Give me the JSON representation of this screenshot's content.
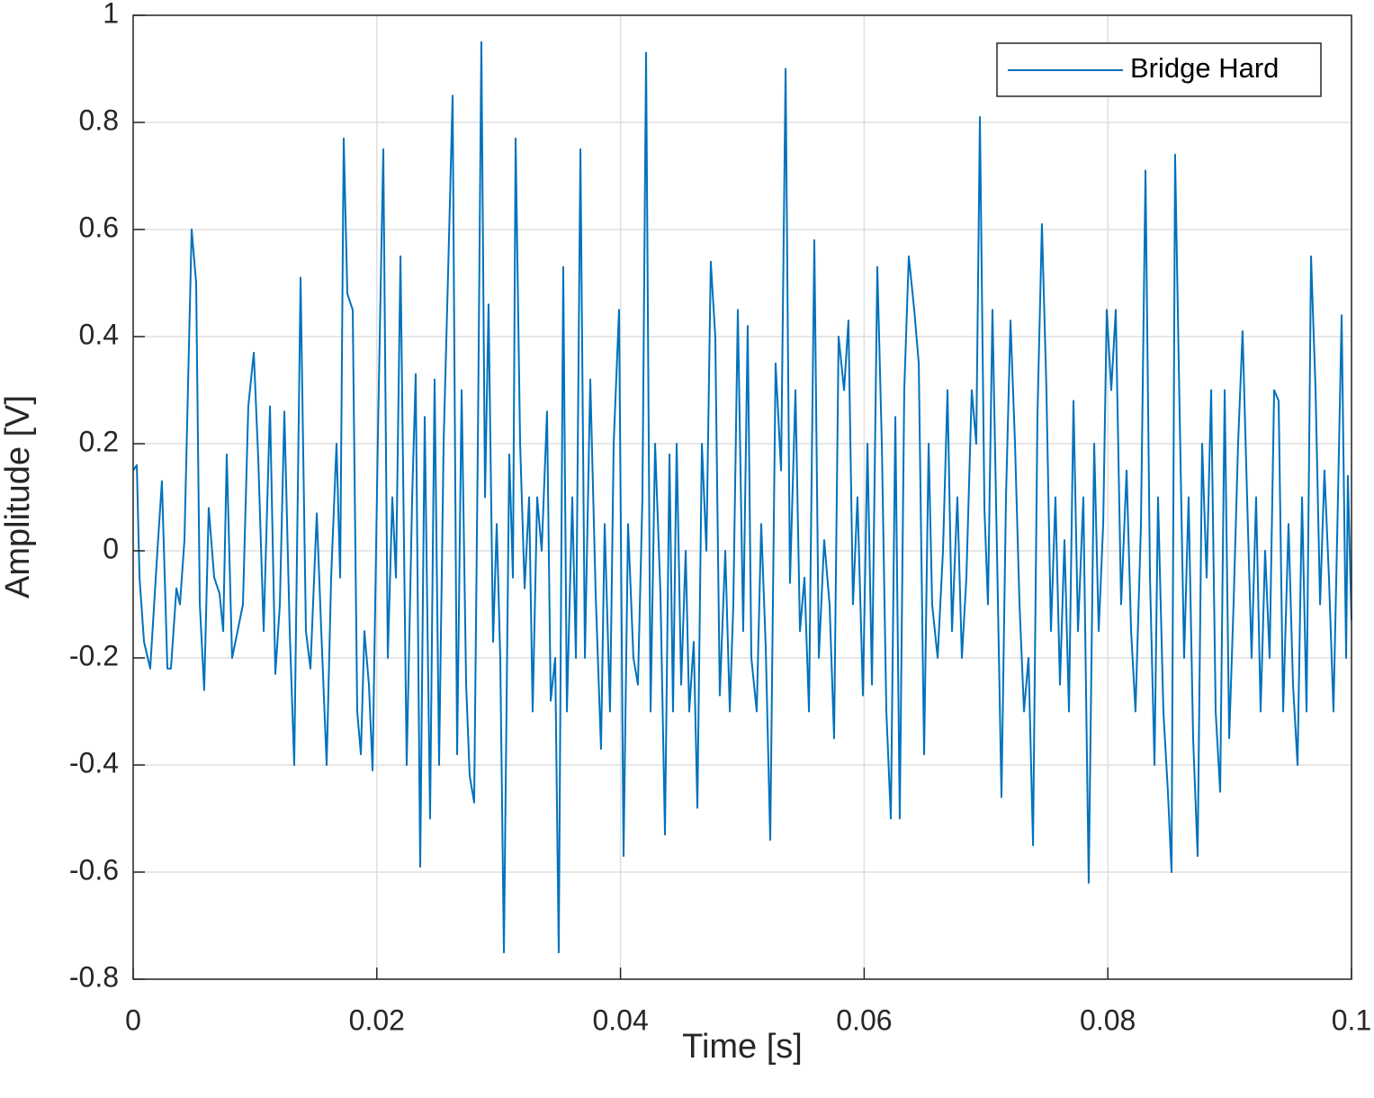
{
  "chart_data": {
    "type": "line",
    "xlabel": "Time [s]",
    "ylabel": "Amplitude [V]",
    "xlim": [
      0,
      0.1
    ],
    "ylim": [
      -0.8,
      1
    ],
    "xticks": [
      0,
      0.02,
      0.04,
      0.06,
      0.08,
      0.1
    ],
    "yticks": [
      -0.8,
      -0.6,
      -0.4,
      -0.2,
      0,
      0.2,
      0.4,
      0.6,
      0.8,
      1
    ],
    "grid": true,
    "legend": "upper right",
    "x": [
      0,
      0.0003,
      0.00052,
      0.00089,
      0.0014,
      0.00199,
      0.00236,
      0.00281,
      0.0031,
      0.00355,
      0.00384,
      0.00421,
      0.0048,
      0.00517,
      0.00547,
      0.00583,
      0.0062,
      0.00665,
      0.00709,
      0.00739,
      0.00768,
      0.00812,
      0.00857,
      0.00901,
      0.00945,
      0.0099,
      0.01027,
      0.01071,
      0.01123,
      0.01167,
      0.01204,
      0.01241,
      0.01285,
      0.01322,
      0.01374,
      0.01418,
      0.01455,
      0.01507,
      0.01544,
      0.01588,
      0.01625,
      0.01669,
      0.01699,
      0.01728,
      0.01758,
      0.01802,
      0.01839,
      0.01869,
      0.01898,
      0.01935,
      0.01965,
      0.02009,
      0.02053,
      0.0209,
      0.02127,
      0.02157,
      0.02194,
      0.02245,
      0.0229,
      0.02319,
      0.02356,
      0.02393,
      0.02437,
      0.02474,
      0.02511,
      0.02548,
      0.02585,
      0.02622,
      0.02659,
      0.02696,
      0.02733,
      0.02762,
      0.02799,
      0.02829,
      0.02858,
      0.02888,
      0.02917,
      0.02954,
      0.02984,
      0.03013,
      0.03043,
      0.03087,
      0.03117,
      0.03139,
      0.03176,
      0.03213,
      0.0325,
      0.03279,
      0.03316,
      0.03353,
      0.03397,
      0.03427,
      0.03464,
      0.03493,
      0.0353,
      0.0356,
      0.03604,
      0.03634,
      0.03671,
      0.03708,
      0.03752,
      0.03796,
      0.0384,
      0.0387,
      0.03914,
      0.03944,
      0.03988,
      0.04025,
      0.04062,
      0.04106,
      0.04143,
      0.0418,
      0.0421,
      0.04247,
      0.04284,
      0.04328,
      0.04365,
      0.04402,
      0.04431,
      0.04461,
      0.04498,
      0.04535,
      0.04564,
      0.04601,
      0.04631,
      0.04668,
      0.04705,
      0.04741,
      0.04778,
      0.04815,
      0.0486,
      0.04897,
      0.04926,
      0.04963,
      0.05007,
      0.05044,
      0.05074,
      0.05118,
      0.05155,
      0.05192,
      0.05229,
      0.05273,
      0.05318,
      0.05355,
      0.05391,
      0.05436,
      0.05473,
      0.0551,
      0.05547,
      0.05591,
      0.05628,
      0.05672,
      0.05716,
      0.05753,
      0.0579,
      0.05835,
      0.05871,
      0.05908,
      0.05945,
      0.0599,
      0.06027,
      0.06064,
      0.06108,
      0.06145,
      0.06182,
      0.06219,
      0.06256,
      0.06292,
      0.06329,
      0.06366,
      0.06411,
      0.06448,
      0.06492,
      0.06529,
      0.06558,
      0.06603,
      0.06647,
      0.06684,
      0.06721,
      0.06765,
      0.06802,
      0.06839,
      0.06883,
      0.0692,
      0.0695,
      0.06987,
      0.07016,
      0.07053,
      0.0709,
      0.07127,
      0.07164,
      0.07201,
      0.07238,
      0.07275,
      0.07312,
      0.07349,
      0.07386,
      0.07422,
      0.07459,
      0.07496,
      0.07533,
      0.0757,
      0.07607,
      0.07644,
      0.07681,
      0.07718,
      0.07755,
      0.07799,
      0.07843,
      0.07888,
      0.07925,
      0.07962,
      0.07991,
      0.08028,
      0.08065,
      0.08109,
      0.08154,
      0.08191,
      0.08227,
      0.08272,
      0.08309,
      0.08346,
      0.08383,
      0.08412,
      0.08456,
      0.08493,
      0.08523,
      0.08552,
      0.08582,
      0.08626,
      0.08663,
      0.087,
      0.08737,
      0.08774,
      0.08811,
      0.08848,
      0.08885,
      0.08922,
      0.08959,
      0.08996,
      0.09032,
      0.09069,
      0.09106,
      0.09143,
      0.0918,
      0.09217,
      0.09254,
      0.09291,
      0.09328,
      0.09365,
      0.09402,
      0.09439,
      0.09483,
      0.0952,
      0.09557,
      0.09594,
      0.09631,
      0.09668,
      0.09705,
      0.09742,
      0.09778,
      0.09815,
      0.09852,
      0.09889,
      0.09919,
      0.09956,
      0.0997,
      0.1
    ],
    "series": [
      {
        "name": "Bridge Hard",
        "color": "#0072BD",
        "values": [
          0.15,
          0.16,
          -0.05,
          -0.17,
          -0.22,
          0.0,
          0.13,
          -0.22,
          -0.22,
          -0.07,
          -0.1,
          0.02,
          0.6,
          0.5,
          -0.1,
          -0.26,
          0.08,
          -0.05,
          -0.08,
          -0.15,
          0.18,
          -0.2,
          -0.15,
          -0.1,
          0.27,
          0.37,
          0.17,
          -0.15,
          0.27,
          -0.23,
          -0.1,
          0.26,
          -0.15,
          -0.4,
          0.51,
          -0.15,
          -0.22,
          0.07,
          -0.15,
          -0.4,
          -0.05,
          0.2,
          -0.05,
          0.77,
          0.48,
          0.45,
          -0.3,
          -0.38,
          -0.15,
          -0.25,
          -0.41,
          0.22,
          0.75,
          -0.2,
          0.1,
          -0.05,
          0.55,
          -0.4,
          0.1,
          0.33,
          -0.59,
          0.25,
          -0.5,
          0.32,
          -0.4,
          0.2,
          0.52,
          0.85,
          -0.38,
          0.3,
          -0.25,
          -0.42,
          -0.47,
          0.2,
          0.95,
          0.1,
          0.46,
          -0.17,
          0.05,
          -0.2,
          -0.75,
          0.18,
          -0.05,
          0.77,
          0.2,
          -0.07,
          0.1,
          -0.3,
          0.1,
          0.0,
          0.26,
          -0.28,
          -0.2,
          -0.75,
          0.53,
          -0.3,
          0.1,
          -0.2,
          0.75,
          -0.2,
          0.32,
          -0.08,
          -0.37,
          0.05,
          -0.3,
          0.2,
          0.45,
          -0.57,
          0.05,
          -0.2,
          -0.25,
          0.1,
          0.93,
          -0.3,
          0.2,
          -0.08,
          -0.53,
          0.18,
          -0.3,
          0.2,
          -0.25,
          0.0,
          -0.3,
          -0.17,
          -0.48,
          0.2,
          0.0,
          0.54,
          0.4,
          -0.27,
          0.0,
          -0.3,
          -0.1,
          0.45,
          -0.15,
          0.42,
          -0.2,
          -0.3,
          0.05,
          -0.18,
          -0.54,
          0.35,
          0.15,
          0.9,
          -0.06,
          0.3,
          -0.15,
          -0.05,
          -0.3,
          0.58,
          -0.2,
          0.02,
          -0.1,
          -0.35,
          0.4,
          0.3,
          0.43,
          -0.1,
          0.1,
          -0.27,
          0.2,
          -0.25,
          0.53,
          0.2,
          -0.3,
          -0.5,
          0.25,
          -0.5,
          0.3,
          0.55,
          0.45,
          0.35,
          -0.38,
          0.2,
          -0.1,
          -0.2,
          0.0,
          0.3,
          -0.15,
          0.1,
          -0.2,
          -0.05,
          0.3,
          0.2,
          0.81,
          0.08,
          -0.1,
          0.45,
          0.0,
          -0.46,
          0.1,
          0.43,
          0.2,
          -0.1,
          -0.3,
          -0.2,
          -0.55,
          0.25,
          0.61,
          0.3,
          -0.15,
          0.1,
          -0.25,
          0.02,
          -0.3,
          0.28,
          -0.15,
          0.1,
          -0.62,
          0.2,
          -0.15,
          0.05,
          0.45,
          0.3,
          0.45,
          -0.1,
          0.15,
          -0.15,
          -0.3,
          0.05,
          0.71,
          -0.05,
          -0.4,
          0.1,
          -0.3,
          -0.45,
          -0.6,
          0.74,
          0.35,
          -0.2,
          0.1,
          -0.35,
          -0.57,
          0.2,
          -0.05,
          0.3,
          -0.3,
          -0.45,
          0.3,
          -0.35,
          -0.1,
          0.2,
          0.41,
          0.1,
          -0.2,
          0.1,
          -0.3,
          0.0,
          -0.2,
          0.3,
          0.28,
          -0.3,
          0.05,
          -0.25,
          -0.4,
          0.1,
          -0.3,
          0.55,
          0.3,
          -0.1,
          0.15,
          -0.05,
          -0.3,
          0.1,
          0.44,
          -0.2,
          0.14,
          -0.13
        ]
      }
    ]
  }
}
